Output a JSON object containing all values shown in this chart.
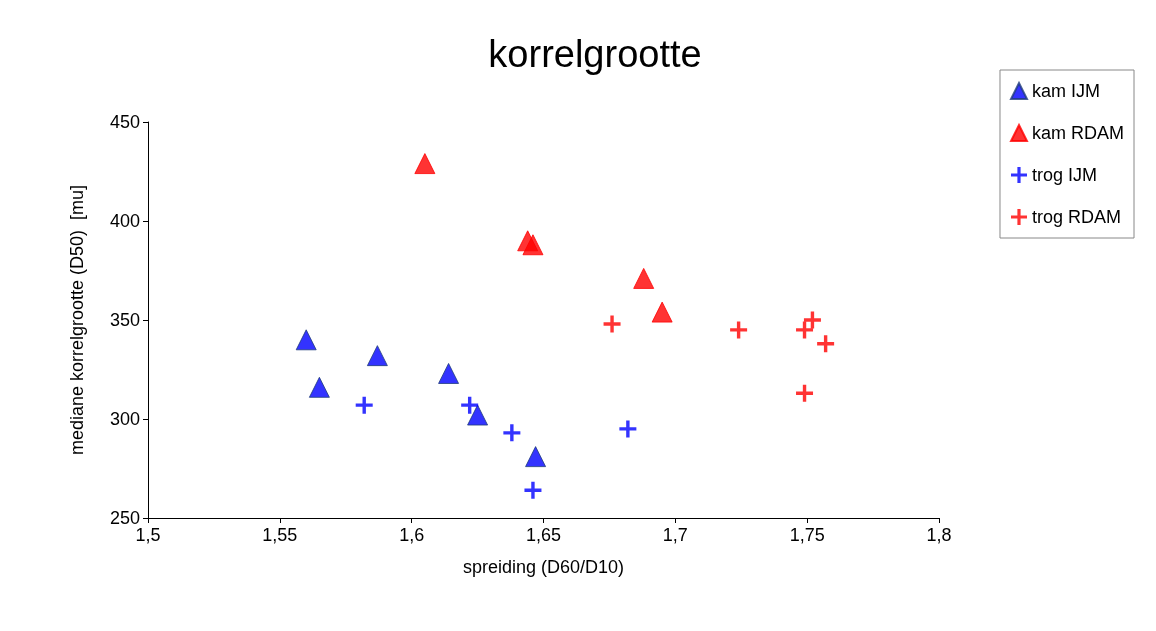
{
  "chart_data": {
    "type": "scatter",
    "title": "korrelgrootte",
    "xlabel": "spreiding (D60/D10)",
    "ylabel": "mediane korrelgrootte (D50)  [mu]",
    "xlim": [
      1.5,
      1.8
    ],
    "xticks": [
      {
        "value": 1.5,
        "label": "1,5"
      },
      {
        "value": 1.55,
        "label": "1,55"
      },
      {
        "value": 1.6,
        "label": "1,6"
      },
      {
        "value": 1.65,
        "label": "1,65"
      },
      {
        "value": 1.7,
        "label": "1,7"
      },
      {
        "value": 1.75,
        "label": "1,75"
      },
      {
        "value": 1.8,
        "label": "1,8"
      }
    ],
    "ylim": [
      250,
      450
    ],
    "yticks": [
      250,
      300,
      350,
      400,
      450
    ],
    "grid": false,
    "legend": "top right",
    "series": [
      {
        "name": "kam IJM",
        "color": "#0000ff",
        "marker": "triangle",
        "x": [
          1.56,
          1.565,
          1.587,
          1.614,
          1.625,
          1.647
        ],
        "values": [
          340,
          316,
          332,
          323,
          302,
          281
        ]
      },
      {
        "name": "kam RDAM",
        "color": "#ff0000",
        "marker": "triangle",
        "x": [
          1.605,
          1.644,
          1.646,
          1.688,
          1.695
        ],
        "values": [
          429,
          390,
          388,
          371,
          354
        ]
      },
      {
        "name": "trog IJM",
        "color": "#0000ff",
        "marker": "cross",
        "x": [
          1.582,
          1.622,
          1.638,
          1.682,
          1.646
        ],
        "values": [
          307,
          307,
          293,
          295,
          264
        ]
      },
      {
        "name": "trog RDAM",
        "color": "#ff0000",
        "marker": "cross",
        "x": [
          1.676,
          1.724,
          1.749,
          1.752,
          1.757,
          1.749
        ],
        "values": [
          348,
          345,
          345,
          350,
          338,
          313
        ]
      }
    ]
  }
}
